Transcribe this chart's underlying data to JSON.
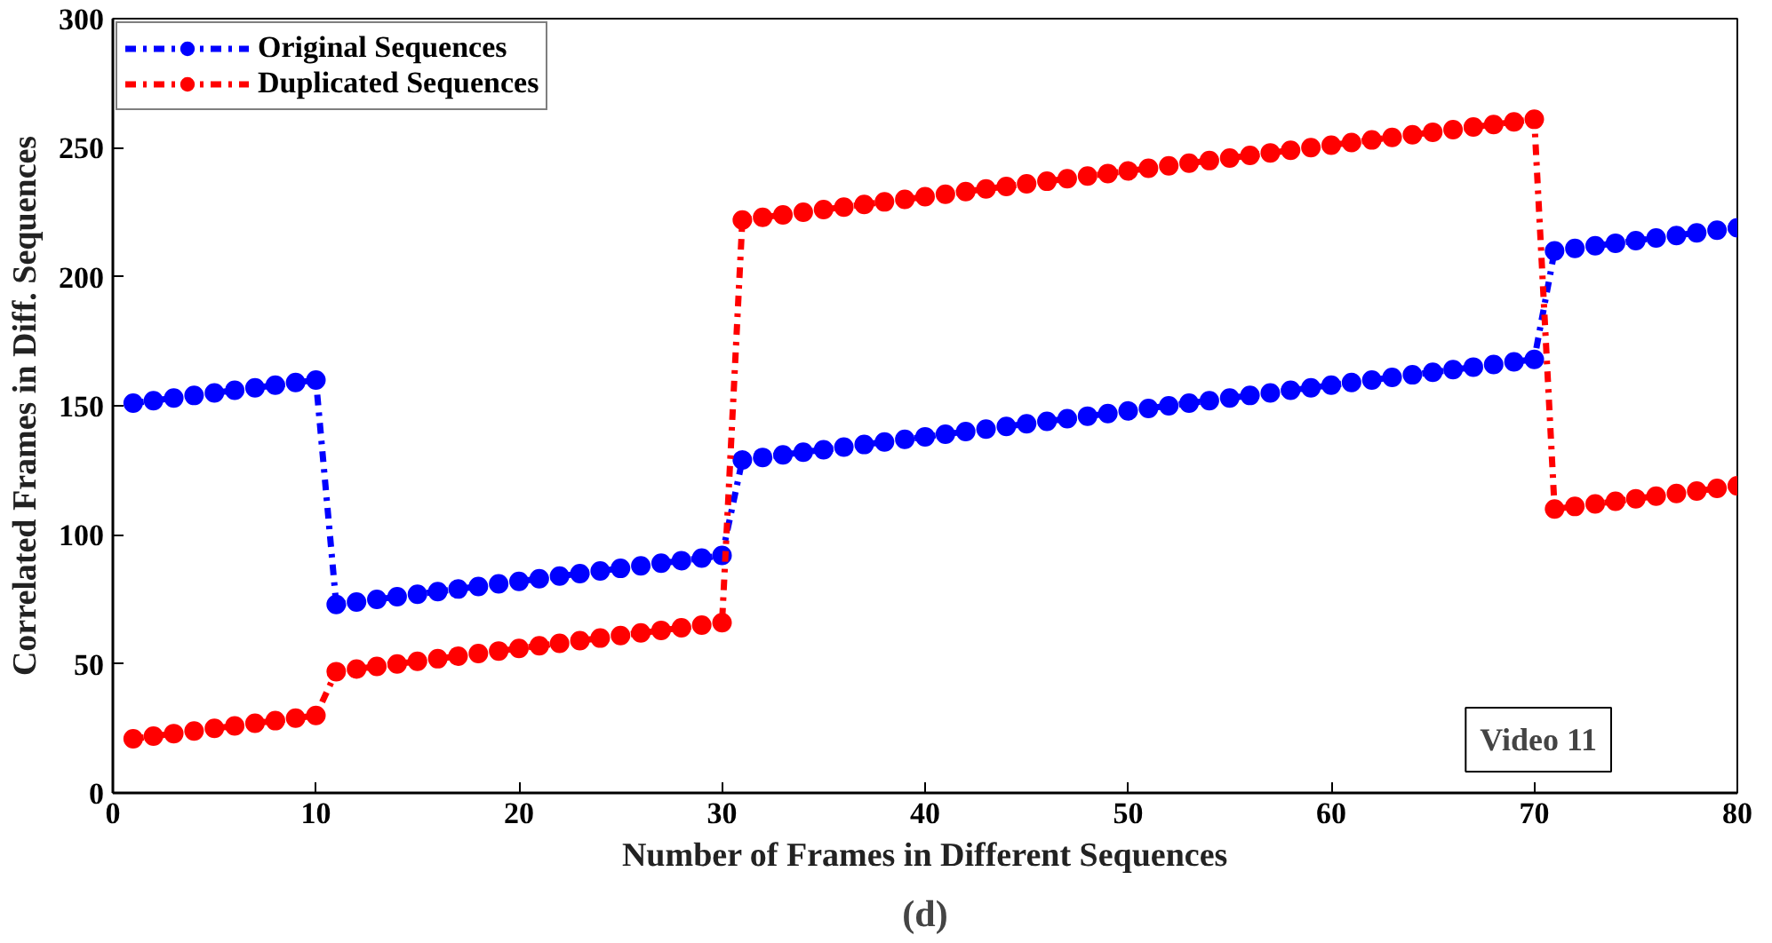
{
  "chart_data": {
    "type": "line",
    "xlabel": "Number of Frames in Different Sequences",
    "ylabel": "Correlated Frames in Diff. Sequences",
    "x": [
      1,
      2,
      3,
      4,
      5,
      6,
      7,
      8,
      9,
      10,
      11,
      12,
      13,
      14,
      15,
      16,
      17,
      18,
      19,
      20,
      21,
      22,
      23,
      24,
      25,
      26,
      27,
      28,
      29,
      30,
      31,
      32,
      33,
      34,
      35,
      36,
      37,
      38,
      39,
      40,
      41,
      42,
      43,
      44,
      45,
      46,
      47,
      48,
      49,
      50,
      51,
      52,
      53,
      54,
      55,
      56,
      57,
      58,
      59,
      60,
      61,
      62,
      63,
      64,
      65,
      66,
      67,
      68,
      69,
      70,
      71,
      72,
      73,
      74,
      75,
      76,
      77,
      78,
      79,
      80
    ],
    "series": [
      {
        "name": "Original Sequences",
        "color": "#0000ff",
        "values": [
          151,
          152,
          153,
          154,
          155,
          156,
          157,
          158,
          159,
          160,
          73,
          74,
          75,
          76,
          77,
          78,
          79,
          80,
          81,
          82,
          83,
          84,
          85,
          86,
          87,
          88,
          89,
          90,
          91,
          92,
          129,
          130,
          131,
          132,
          133,
          134,
          135,
          136,
          137,
          138,
          139,
          140,
          141,
          142,
          143,
          144,
          145,
          146,
          147,
          148,
          149,
          150,
          151,
          152,
          153,
          154,
          155,
          156,
          157,
          158,
          159,
          160,
          161,
          162,
          163,
          164,
          165,
          166,
          167,
          168,
          210,
          211,
          212,
          213,
          214,
          215,
          216,
          217,
          218,
          219
        ]
      },
      {
        "name": "Duplicated Sequences",
        "color": "#ff0000",
        "values": [
          21,
          22,
          23,
          24,
          25,
          26,
          27,
          28,
          29,
          30,
          47,
          48,
          49,
          50,
          51,
          52,
          53,
          54,
          55,
          56,
          57,
          58,
          59,
          60,
          61,
          62,
          63,
          64,
          65,
          66,
          222,
          223,
          224,
          225,
          226,
          227,
          228,
          229,
          230,
          231,
          232,
          233,
          234,
          235,
          236,
          237,
          238,
          239,
          240,
          241,
          242,
          243,
          244,
          245,
          246,
          247,
          248,
          249,
          250,
          251,
          252,
          253,
          254,
          255,
          256,
          257,
          258,
          259,
          260,
          261,
          110,
          111,
          112,
          113,
          114,
          115,
          116,
          117,
          118,
          119
        ]
      }
    ],
    "xlim": [
      0,
      80
    ],
    "ylim": [
      0,
      300
    ],
    "xticks": [
      0,
      10,
      20,
      30,
      40,
      50,
      60,
      70,
      80
    ],
    "yticks": [
      0,
      50,
      100,
      150,
      200,
      250,
      300
    ],
    "marker": "circle",
    "line_style": "dashdot",
    "legend": "top left",
    "grid": false,
    "annotations": [
      "Video 11",
      "(d)"
    ]
  }
}
